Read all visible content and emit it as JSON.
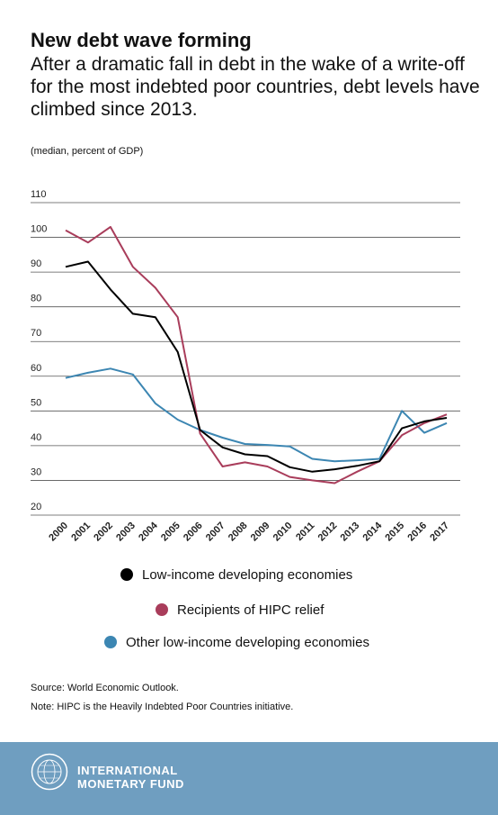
{
  "header": {
    "title": "New debt wave forming",
    "subtitle": "After a dramatic fall in debt in the wake of a write-off for the most indebted poor countries, debt levels have climbed since 2013.",
    "units": "(median, percent of GDP)"
  },
  "chart_data": {
    "type": "line",
    "title": "",
    "xlabel": "",
    "ylabel": "",
    "ylim": [
      20,
      110
    ],
    "yticks": [
      20,
      30,
      40,
      50,
      60,
      70,
      80,
      90,
      100,
      110
    ],
    "grid": "horizontal",
    "legend_position": "bottom",
    "x": [
      "2000",
      "2001",
      "2002",
      "2003",
      "2004",
      "2005",
      "2006",
      "2007",
      "2008",
      "2009",
      "2010",
      "2011",
      "2012",
      "2013",
      "2014",
      "2015",
      "2016",
      "2017"
    ],
    "series": [
      {
        "name": "Low-income developing economies",
        "color": "#000000",
        "values": [
          91.5,
          93,
          85,
          78,
          77,
          67,
          44.5,
          39.5,
          37.5,
          37,
          33.8,
          32.5,
          33.2,
          34.2,
          35.5,
          45,
          47,
          48
        ]
      },
      {
        "name": "Recipients of HIPC relief",
        "color": "#a93d5b",
        "values": [
          102,
          98.5,
          103,
          91.5,
          85.5,
          77,
          43.5,
          34,
          35.2,
          34,
          31,
          30,
          29.2,
          32.5,
          35.5,
          43,
          46.5,
          49
        ]
      },
      {
        "name": "Other low-income developing economies",
        "color": "#3c86b2",
        "values": [
          59.5,
          61,
          62.2,
          60.5,
          52.2,
          47.5,
          44.5,
          42.3,
          40.5,
          40.2,
          39.8,
          36.2,
          35.5,
          35.8,
          36.2,
          50,
          43.7,
          46.5
        ]
      }
    ]
  },
  "footer": {
    "source": "Source: World Economic Outlook.",
    "note": "Note: HIPC is the Heavily Indebted Poor Countries initiative.",
    "org_line1": "INTERNATIONAL",
    "org_line2": "MONETARY FUND"
  }
}
